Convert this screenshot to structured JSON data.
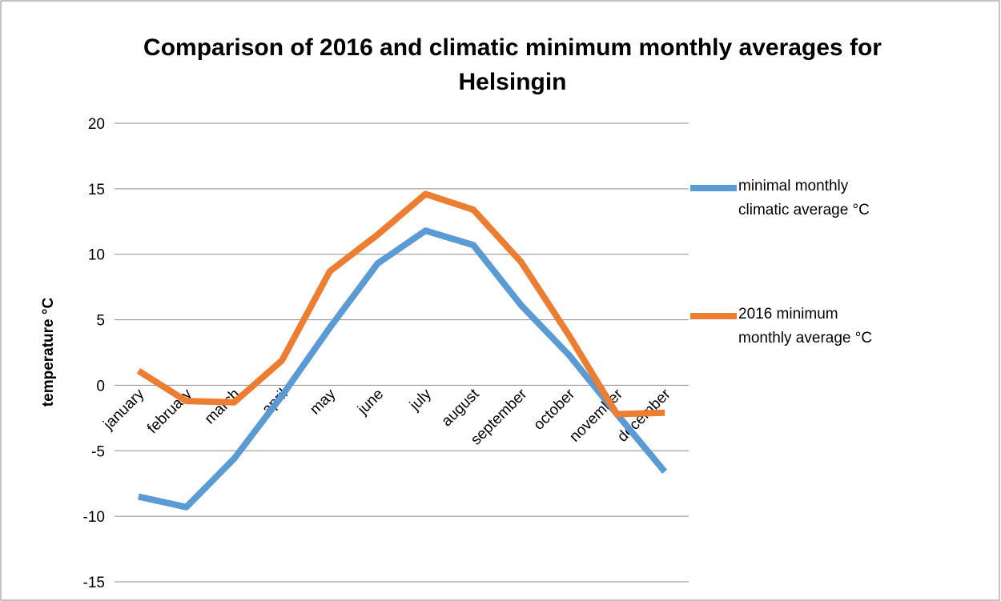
{
  "chart_data": {
    "type": "line",
    "title": "Comparison of 2016 and climatic minimum monthly  averages for Helsingin",
    "y_label": "temperature °C",
    "categories": [
      "january",
      "february",
      "march",
      "april",
      "may",
      "june",
      "july",
      "august",
      "september",
      "october",
      "november",
      "december"
    ],
    "series": [
      {
        "name": "minimal monthly climatic average °C",
        "color": "#5b9bd5",
        "values": [
          -8.5,
          -9.3,
          -5.6,
          -0.8,
          4.4,
          9.3,
          11.8,
          10.7,
          6.1,
          2.3,
          -2.2,
          -6.6
        ]
      },
      {
        "name": "2016 minimum monthly average °C",
        "color": "#ed7d31",
        "values": [
          1.1,
          -1.2,
          -1.3,
          1.9,
          8.7,
          11.5,
          14.6,
          13.4,
          9.4,
          3.8,
          -2.2,
          -2.1
        ]
      }
    ],
    "ylim": [
      -15,
      20
    ],
    "yticks": [
      -15,
      -10,
      -5,
      0,
      5,
      10,
      15,
      20
    ],
    "grid": true,
    "legend": "right"
  }
}
